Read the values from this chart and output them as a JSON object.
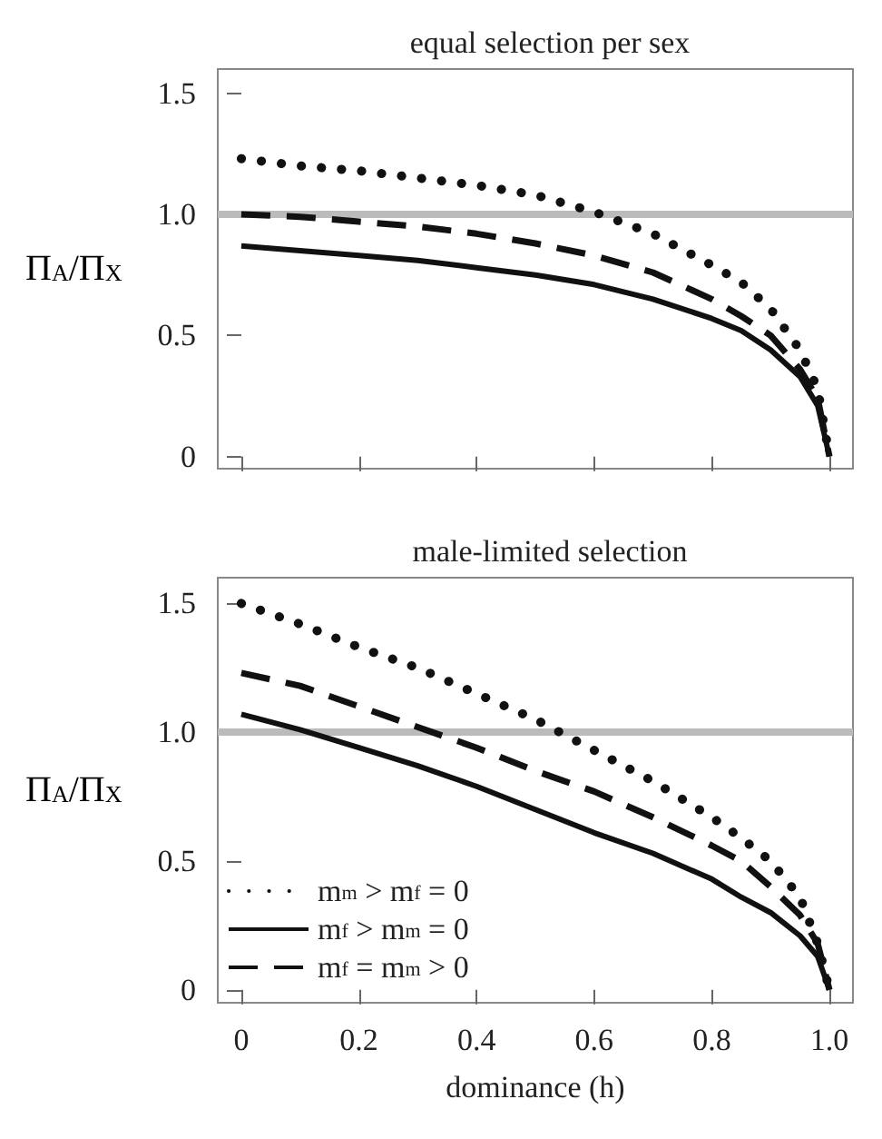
{
  "chart_data": [
    {
      "type": "line",
      "title": "equal selection per sex",
      "ylabel": "Π$_{A}$/Π$_{X}$",
      "x": [
        0,
        0.1,
        0.2,
        0.3,
        0.4,
        0.5,
        0.6,
        0.7,
        0.8,
        0.85,
        0.9,
        0.95,
        0.98,
        1.0
      ],
      "series": [
        {
          "color": "#111111",
          "line_style": "dotted",
          "values": [
            1.23,
            1.2,
            1.18,
            1.15,
            1.12,
            1.08,
            1.01,
            0.92,
            0.79,
            0.72,
            0.61,
            0.44,
            0.28,
            0
          ]
        },
        {
          "color": "#111111",
          "line_style": "solid",
          "values": [
            0.87,
            0.85,
            0.83,
            0.81,
            0.78,
            0.75,
            0.71,
            0.65,
            0.57,
            0.52,
            0.44,
            0.33,
            0.21,
            0
          ]
        },
        {
          "color": "#111111",
          "line_style": "dashed",
          "values": [
            1.0,
            0.99,
            0.97,
            0.95,
            0.92,
            0.88,
            0.83,
            0.76,
            0.65,
            0.58,
            0.5,
            0.36,
            0.24,
            0
          ]
        }
      ],
      "ref_lines": [
        {
          "axis": "y",
          "value": 1.0,
          "color": "#bbbbbb"
        }
      ],
      "xlim": [
        -0.04,
        1.04
      ],
      "xticks": [
        0,
        0.2,
        0.4,
        0.6,
        0.8,
        1
      ],
      "ylim": [
        -0.05,
        1.6
      ],
      "yticks": [
        0,
        0.5,
        {
          "value": 1,
          "label": "1.0"
        },
        1.5
      ],
      "tick_labels": "y",
      "grid": false,
      "legend": false,
      "marker": "none"
    },
    {
      "type": "line",
      "title": "male-limited selection",
      "xlabel": "dominance (h)",
      "ylabel": "Π$_{A}$/Π$_{X}$",
      "x": [
        0,
        0.1,
        0.2,
        0.3,
        0.4,
        0.5,
        0.6,
        0.7,
        0.8,
        0.85,
        0.9,
        0.95,
        0.98,
        1.0
      ],
      "series": [
        {
          "name": "m$_{m}$ > m$_{f}$ = 0",
          "color": "#111111",
          "line_style": "dotted",
          "values": [
            1.5,
            1.42,
            1.33,
            1.25,
            1.15,
            1.05,
            0.93,
            0.81,
            0.67,
            0.59,
            0.5,
            0.36,
            0.18,
            0
          ]
        },
        {
          "name": "m$_{f}$ > m$_{m}$ = 0",
          "color": "#111111",
          "line_style": "solid",
          "values": [
            1.07,
            1.01,
            0.94,
            0.87,
            0.79,
            0.7,
            0.61,
            0.53,
            0.43,
            0.36,
            0.3,
            0.21,
            0.13,
            0
          ]
        },
        {
          "name": "m$_{f}$ = m$_{m}$ > 0",
          "color": "#111111",
          "line_style": "dashed",
          "values": [
            1.23,
            1.18,
            1.1,
            1.02,
            0.94,
            0.85,
            0.77,
            0.67,
            0.56,
            0.5,
            0.4,
            0.29,
            0.18,
            0
          ]
        }
      ],
      "ref_lines": [
        {
          "axis": "y",
          "value": 1.0,
          "color": "#bbbbbb"
        }
      ],
      "xlim": [
        -0.04,
        1.04
      ],
      "xticks": [
        0,
        0.2,
        0.4,
        0.6,
        0.8,
        {
          "value": 1,
          "label": "1.0"
        }
      ],
      "ylim": [
        -0.05,
        1.6
      ],
      "yticks": [
        0,
        0.5,
        {
          "value": 1,
          "label": "1.0"
        },
        1.5
      ],
      "grid": false,
      "legend": "bottom left",
      "marker": "none"
    }
  ]
}
